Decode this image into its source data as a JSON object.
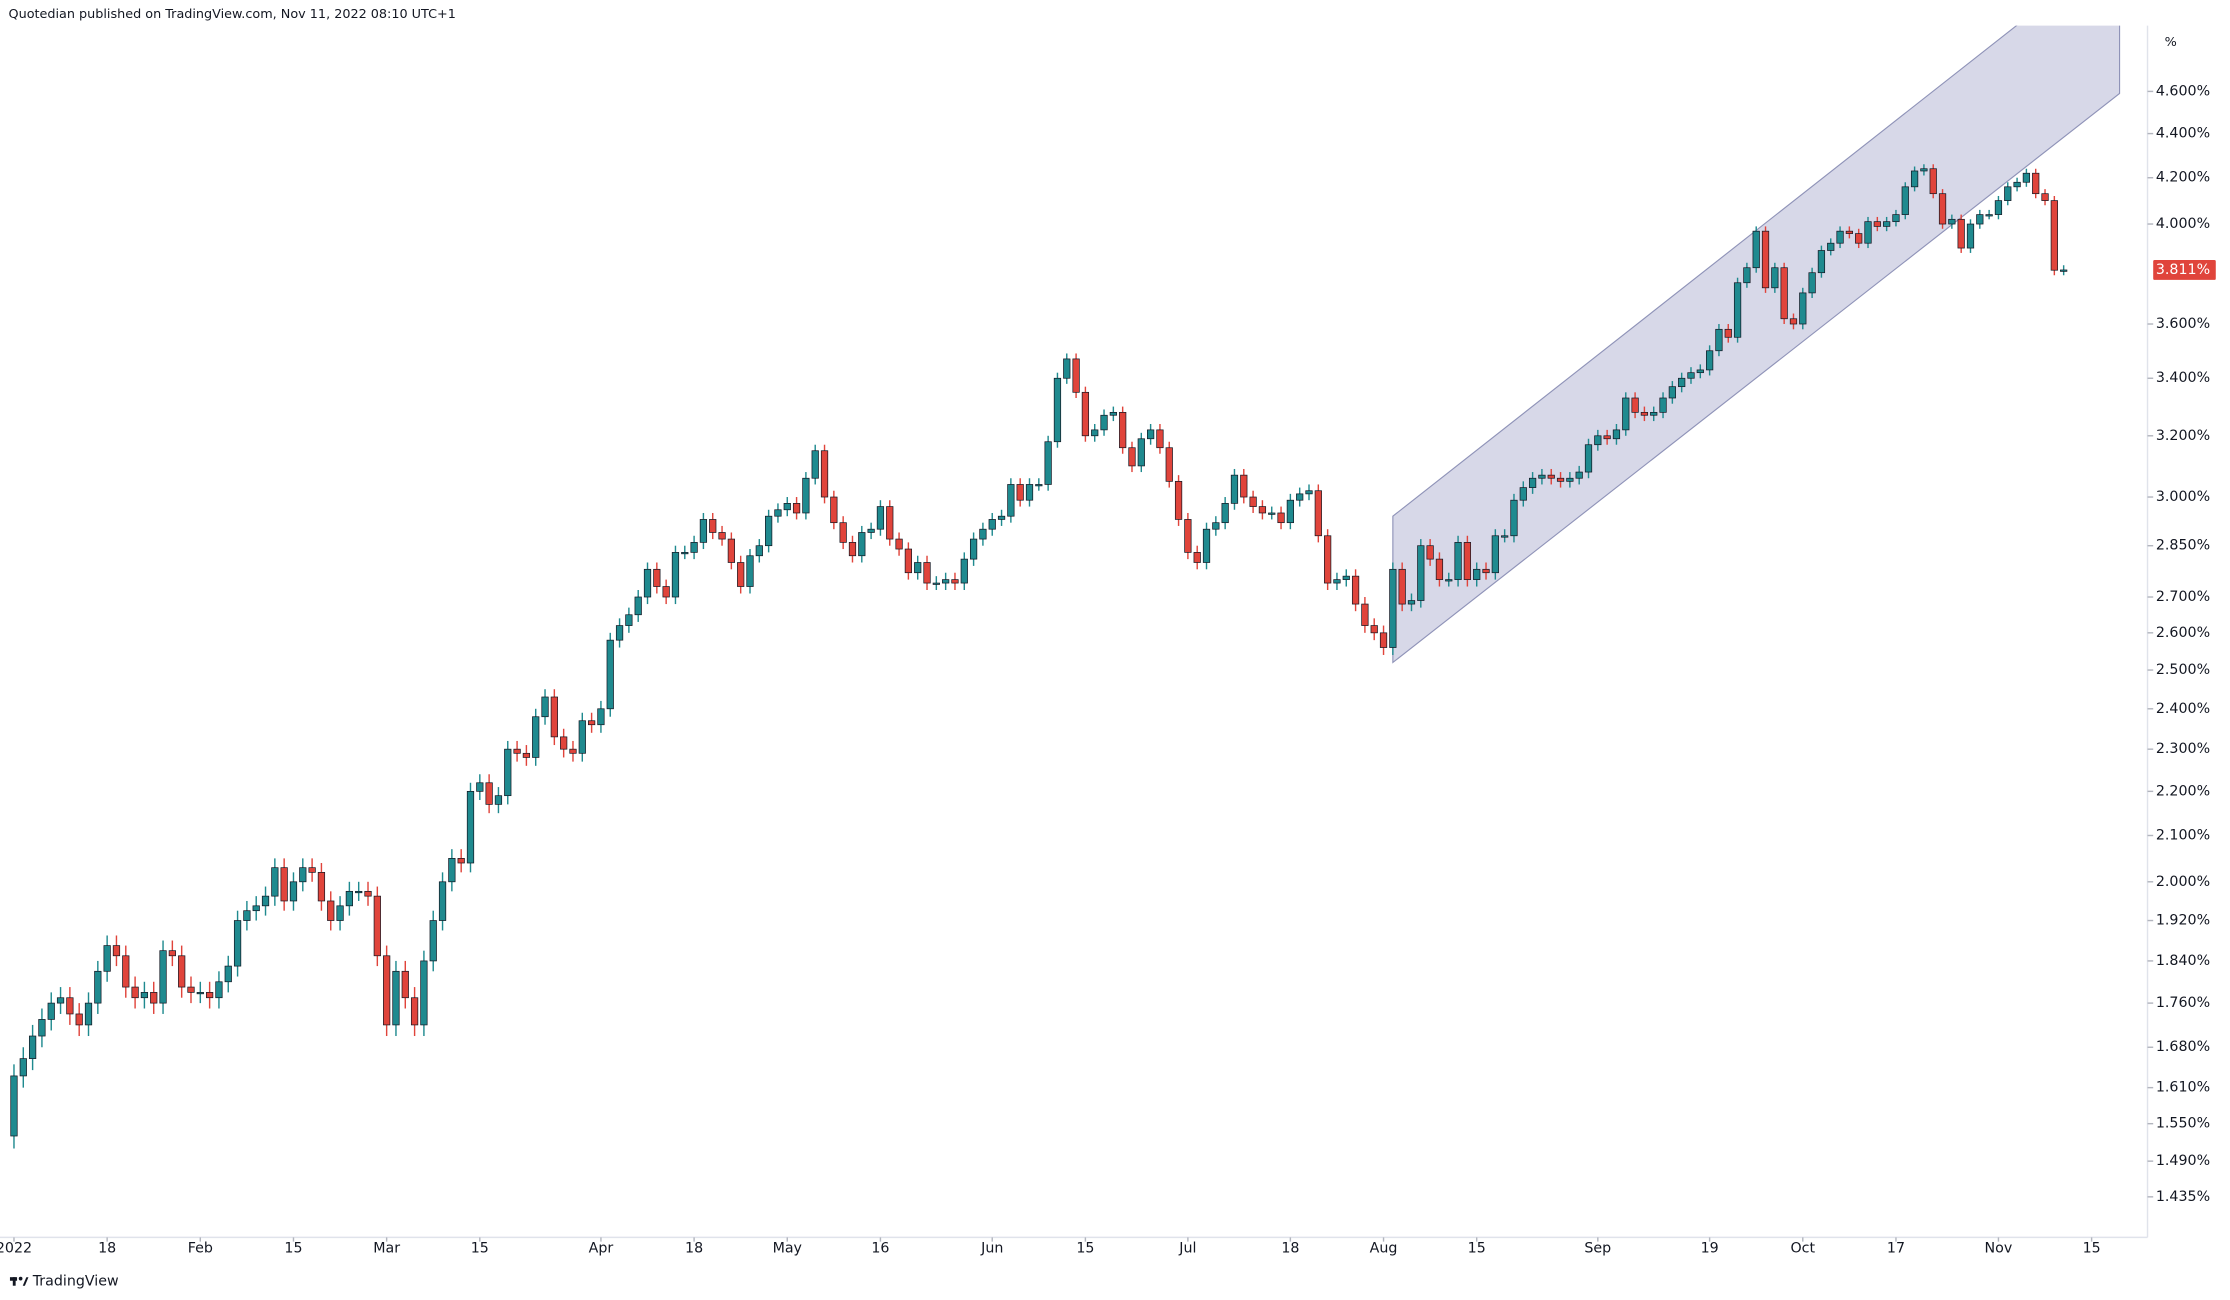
{
  "chart_data": {
    "type": "candlestick",
    "title": "Quotedian published on TradingView.com, Nov 11, 2022 08:10 UTC+1",
    "source": "TradingView",
    "y_unit": "%",
    "log_scale": true,
    "grid": false,
    "up_color": "#1f8a8f",
    "down_color": "#e0443b",
    "xlim": [
      -1.5,
      229
    ],
    "ylim": [
      1.375,
      4.93
    ],
    "xticks": [
      {
        "value": 0,
        "label": "2022"
      },
      {
        "value": 10,
        "label": "18"
      },
      {
        "value": 20,
        "label": "Feb"
      },
      {
        "value": 30,
        "label": "15"
      },
      {
        "value": 40,
        "label": "Mar"
      },
      {
        "value": 50,
        "label": "15"
      },
      {
        "value": 63,
        "label": "Apr"
      },
      {
        "value": 73,
        "label": "18"
      },
      {
        "value": 83,
        "label": "May"
      },
      {
        "value": 93,
        "label": "16"
      },
      {
        "value": 105,
        "label": "Jun"
      },
      {
        "value": 115,
        "label": "15"
      },
      {
        "value": 126,
        "label": "Jul"
      },
      {
        "value": 137,
        "label": "18"
      },
      {
        "value": 147,
        "label": "Aug"
      },
      {
        "value": 157,
        "label": "15"
      },
      {
        "value": 170,
        "label": "Sep"
      },
      {
        "value": 182,
        "label": "19"
      },
      {
        "value": 192,
        "label": "Oct"
      },
      {
        "value": 202,
        "label": "17"
      },
      {
        "value": 213,
        "label": "Nov"
      },
      {
        "value": 223,
        "label": "15"
      }
    ],
    "yticks": [
      {
        "value": 1.435,
        "label": "1.435%"
      },
      {
        "value": 1.49,
        "label": "1.490%"
      },
      {
        "value": 1.55,
        "label": "1.550%"
      },
      {
        "value": 1.61,
        "label": "1.610%"
      },
      {
        "value": 1.68,
        "label": "1.680%"
      },
      {
        "value": 1.76,
        "label": "1.760%"
      },
      {
        "value": 1.84,
        "label": "1.840%"
      },
      {
        "value": 1.92,
        "label": "1.920%"
      },
      {
        "value": 2.0,
        "label": "2.000%"
      },
      {
        "value": 2.1,
        "label": "2.100%"
      },
      {
        "value": 2.2,
        "label": "2.200%"
      },
      {
        "value": 2.3,
        "label": "2.300%"
      },
      {
        "value": 2.4,
        "label": "2.400%"
      },
      {
        "value": 2.5,
        "label": "2.500%"
      },
      {
        "value": 2.6,
        "label": "2.600%"
      },
      {
        "value": 2.7,
        "label": "2.700%"
      },
      {
        "value": 2.85,
        "label": "2.850%"
      },
      {
        "value": 3.0,
        "label": "3.000%"
      },
      {
        "value": 3.2,
        "label": "3.200%"
      },
      {
        "value": 3.4,
        "label": "3.400%"
      },
      {
        "value": 3.6,
        "label": "3.600%"
      },
      {
        "value": 4.0,
        "label": "4.000%"
      },
      {
        "value": 4.2,
        "label": "4.200%"
      },
      {
        "value": 4.4,
        "label": "4.400%"
      },
      {
        "value": 4.6,
        "label": "4.600%"
      }
    ],
    "last_label": {
      "value": 3.811,
      "label": "3.811%"
    },
    "channel": {
      "x": [
        148,
        226
      ],
      "lower": [
        2.52,
        4.59
      ],
      "upper": [
        2.94,
        5.37
      ],
      "color": "#c9cbe0"
    },
    "open": [
      1.53,
      1.63,
      1.66,
      1.7,
      1.73,
      1.76,
      1.77,
      1.74,
      1.72,
      1.76,
      1.82,
      1.87,
      1.85,
      1.79,
      1.77,
      1.78,
      1.76,
      1.86,
      1.85,
      1.79,
      1.78,
      1.78,
      1.77,
      1.8,
      1.83,
      1.92,
      1.94,
      1.95,
      1.97,
      2.03,
      1.96,
      2.0,
      2.03,
      2.02,
      1.96,
      1.92,
      1.95,
      1.98,
      1.98,
      1.97,
      1.85,
      1.72,
      1.82,
      1.77,
      1.72,
      1.84,
      1.92,
      2.0,
      2.05,
      2.04,
      2.2,
      2.22,
      2.17,
      2.19,
      2.3,
      2.29,
      2.28,
      2.38,
      2.43,
      2.33,
      2.3,
      2.29,
      2.37,
      2.36,
      2.4,
      2.58,
      2.62,
      2.65,
      2.7,
      2.78,
      2.73,
      2.7,
      2.83,
      2.83,
      2.86,
      2.93,
      2.89,
      2.87,
      2.8,
      2.73,
      2.82,
      2.85,
      2.94,
      2.96,
      2.98,
      2.95,
      3.06,
      3.15,
      3.0,
      2.92,
      2.86,
      2.82,
      2.89,
      2.9,
      2.97,
      2.87,
      2.84,
      2.77,
      2.8,
      2.74,
      2.74,
      2.75,
      2.74,
      2.81,
      2.87,
      2.9,
      2.93,
      2.94,
      3.04,
      2.99,
      3.04,
      3.04,
      3.18,
      3.4,
      3.47,
      3.35,
      3.2,
      3.22,
      3.27,
      3.28,
      3.16,
      3.1,
      3.19,
      3.22,
      3.16,
      3.05,
      2.93,
      2.83,
      2.8,
      2.9,
      2.92,
      2.98,
      3.07,
      3.0,
      2.97,
      2.95,
      2.95,
      2.92,
      2.99,
      3.01,
      3.02,
      2.88,
      2.74,
      2.75,
      2.76,
      2.68,
      2.62,
      2.6,
      2.56,
      2.78,
      2.68,
      2.69,
      2.85,
      2.81,
      2.75,
      2.75,
      2.86,
      2.75,
      2.78,
      2.77,
      2.88,
      2.88,
      2.99,
      3.03,
      3.06,
      3.07,
      3.06,
      3.05,
      3.06,
      3.08,
      3.17,
      3.2,
      3.19,
      3.22,
      3.33,
      3.28,
      3.27,
      3.28,
      3.33,
      3.37,
      3.4,
      3.42,
      3.43,
      3.5,
      3.58,
      3.55,
      3.76,
      3.82,
      3.97,
      3.74,
      3.82,
      3.62,
      3.6,
      3.72,
      3.8,
      3.89,
      3.92,
      3.97,
      3.96,
      3.92,
      4.01,
      3.99,
      4.01,
      4.04,
      4.16,
      4.23,
      4.24,
      4.13,
      4.0,
      4.02,
      3.9,
      4.0,
      4.04,
      4.04,
      4.1,
      4.16,
      4.18,
      4.22,
      4.13,
      4.1,
      3.81
    ],
    "high": [
      1.65,
      1.68,
      1.72,
      1.75,
      1.78,
      1.79,
      1.79,
      1.76,
      1.78,
      1.84,
      1.89,
      1.89,
      1.87,
      1.81,
      1.8,
      1.8,
      1.88,
      1.88,
      1.87,
      1.81,
      1.8,
      1.8,
      1.82,
      1.85,
      1.94,
      1.96,
      1.97,
      1.99,
      2.05,
      2.05,
      2.02,
      2.05,
      2.05,
      2.04,
      1.98,
      1.97,
      2.0,
      2.0,
      2.0,
      1.99,
      1.87,
      1.84,
      1.84,
      1.79,
      1.86,
      1.94,
      2.02,
      2.07,
      2.07,
      2.22,
      2.24,
      2.24,
      2.21,
      2.32,
      2.32,
      2.31,
      2.4,
      2.45,
      2.45,
      2.35,
      2.32,
      2.39,
      2.39,
      2.42,
      2.6,
      2.64,
      2.67,
      2.72,
      2.8,
      2.8,
      2.75,
      2.85,
      2.85,
      2.88,
      2.95,
      2.95,
      2.91,
      2.89,
      2.82,
      2.84,
      2.87,
      2.96,
      2.98,
      3.0,
      3.0,
      3.08,
      3.17,
      3.17,
      3.02,
      2.94,
      2.88,
      2.91,
      2.92,
      2.99,
      2.99,
      2.89,
      2.86,
      2.82,
      2.82,
      2.76,
      2.77,
      2.77,
      2.83,
      2.89,
      2.92,
      2.95,
      2.96,
      3.06,
      3.06,
      3.06,
      3.06,
      3.2,
      3.42,
      3.49,
      3.49,
      3.37,
      3.24,
      3.29,
      3.3,
      3.3,
      3.18,
      3.21,
      3.24,
      3.24,
      3.18,
      3.07,
      2.95,
      2.85,
      2.92,
      2.94,
      3.0,
      3.09,
      3.09,
      3.02,
      2.99,
      2.97,
      2.97,
      3.01,
      3.03,
      3.04,
      3.04,
      2.9,
      2.77,
      2.78,
      2.78,
      2.7,
      2.64,
      2.62,
      2.8,
      2.8,
      2.71,
      2.87,
      2.87,
      2.83,
      2.77,
      2.88,
      2.88,
      2.8,
      2.8,
      2.9,
      2.9,
      3.01,
      3.05,
      3.08,
      3.09,
      3.09,
      3.08,
      3.08,
      3.1,
      3.19,
      3.22,
      3.22,
      3.24,
      3.35,
      3.35,
      3.3,
      3.3,
      3.35,
      3.39,
      3.42,
      3.44,
      3.45,
      3.52,
      3.6,
      3.6,
      3.78,
      3.84,
      3.99,
      3.99,
      3.84,
      3.84,
      3.64,
      3.74,
      3.82,
      3.91,
      3.94,
      3.99,
      3.99,
      3.98,
      4.03,
      4.03,
      4.03,
      4.06,
      4.18,
      4.25,
      4.26,
      4.26,
      4.15,
      4.04,
      4.04,
      4.02,
      4.06,
      4.06,
      4.12,
      4.18,
      4.2,
      4.24,
      4.24,
      4.15,
      4.12,
      3.83
    ],
    "low": [
      1.51,
      1.61,
      1.64,
      1.68,
      1.71,
      1.74,
      1.72,
      1.7,
      1.7,
      1.74,
      1.8,
      1.83,
      1.77,
      1.75,
      1.75,
      1.74,
      1.74,
      1.83,
      1.77,
      1.76,
      1.76,
      1.75,
      1.75,
      1.78,
      1.81,
      1.9,
      1.92,
      1.93,
      1.95,
      1.94,
      1.94,
      1.98,
      2.0,
      1.94,
      1.9,
      1.9,
      1.93,
      1.96,
      1.95,
      1.83,
      1.7,
      1.7,
      1.75,
      1.7,
      1.7,
      1.82,
      1.9,
      1.98,
      2.02,
      2.02,
      2.18,
      2.15,
      2.15,
      2.17,
      2.27,
      2.26,
      2.26,
      2.36,
      2.31,
      2.28,
      2.27,
      2.27,
      2.34,
      2.34,
      2.38,
      2.56,
      2.6,
      2.63,
      2.68,
      2.71,
      2.68,
      2.68,
      2.81,
      2.81,
      2.84,
      2.87,
      2.85,
      2.78,
      2.71,
      2.71,
      2.8,
      2.83,
      2.92,
      2.94,
      2.93,
      2.93,
      3.04,
      2.98,
      2.9,
      2.84,
      2.8,
      2.8,
      2.87,
      2.88,
      2.85,
      2.82,
      2.75,
      2.75,
      2.72,
      2.72,
      2.72,
      2.72,
      2.72,
      2.79,
      2.85,
      2.88,
      2.91,
      2.92,
      2.97,
      2.97,
      3.02,
      3.02,
      3.16,
      3.38,
      3.33,
      3.18,
      3.18,
      3.2,
      3.25,
      3.14,
      3.08,
      3.08,
      3.17,
      3.14,
      3.03,
      2.91,
      2.81,
      2.78,
      2.78,
      2.88,
      2.9,
      2.96,
      2.98,
      2.95,
      2.93,
      2.93,
      2.9,
      2.9,
      2.97,
      2.99,
      2.86,
      2.72,
      2.72,
      2.73,
      2.66,
      2.6,
      2.58,
      2.54,
      2.54,
      2.66,
      2.66,
      2.67,
      2.79,
      2.73,
      2.73,
      2.73,
      2.73,
      2.73,
      2.75,
      2.75,
      2.86,
      2.86,
      2.97,
      3.01,
      3.04,
      3.04,
      3.03,
      3.03,
      3.04,
      3.06,
      3.15,
      3.17,
      3.17,
      3.2,
      3.26,
      3.25,
      3.25,
      3.26,
      3.31,
      3.35,
      3.38,
      3.4,
      3.41,
      3.48,
      3.53,
      3.53,
      3.74,
      3.8,
      3.72,
      3.72,
      3.6,
      3.58,
      3.58,
      3.7,
      3.78,
      3.87,
      3.9,
      3.94,
      3.9,
      3.9,
      3.97,
      3.97,
      3.99,
      4.02,
      4.14,
      4.21,
      4.11,
      3.98,
      3.98,
      3.88,
      3.88,
      3.98,
      4.02,
      4.02,
      4.08,
      4.14,
      4.16,
      4.11,
      4.08,
      3.79,
      3.79
    ],
    "close": [
      1.63,
      1.66,
      1.7,
      1.73,
      1.76,
      1.77,
      1.74,
      1.72,
      1.76,
      1.82,
      1.87,
      1.85,
      1.79,
      1.77,
      1.78,
      1.76,
      1.86,
      1.85,
      1.79,
      1.78,
      1.78,
      1.77,
      1.8,
      1.83,
      1.92,
      1.94,
      1.95,
      1.97,
      2.03,
      1.96,
      2.0,
      2.03,
      2.02,
      1.96,
      1.92,
      1.95,
      1.98,
      1.98,
      1.97,
      1.85,
      1.72,
      1.82,
      1.77,
      1.72,
      1.84,
      1.92,
      2.0,
      2.05,
      2.04,
      2.2,
      2.22,
      2.17,
      2.19,
      2.3,
      2.29,
      2.28,
      2.38,
      2.43,
      2.33,
      2.3,
      2.29,
      2.37,
      2.36,
      2.4,
      2.58,
      2.62,
      2.65,
      2.7,
      2.78,
      2.73,
      2.7,
      2.83,
      2.83,
      2.86,
      2.93,
      2.89,
      2.87,
      2.8,
      2.73,
      2.82,
      2.85,
      2.94,
      2.96,
      2.98,
      2.95,
      3.06,
      3.15,
      3.0,
      2.92,
      2.86,
      2.82,
      2.89,
      2.9,
      2.97,
      2.87,
      2.84,
      2.77,
      2.8,
      2.74,
      2.74,
      2.75,
      2.74,
      2.81,
      2.87,
      2.9,
      2.93,
      2.94,
      3.04,
      2.99,
      3.04,
      3.04,
      3.18,
      3.4,
      3.47,
      3.35,
      3.2,
      3.22,
      3.27,
      3.28,
      3.16,
      3.1,
      3.19,
      3.22,
      3.16,
      3.05,
      2.93,
      2.83,
      2.8,
      2.9,
      2.92,
      2.98,
      3.07,
      3.0,
      2.97,
      2.95,
      2.95,
      2.92,
      2.99,
      3.01,
      3.02,
      2.88,
      2.74,
      2.75,
      2.76,
      2.68,
      2.62,
      2.6,
      2.56,
      2.78,
      2.68,
      2.69,
      2.85,
      2.81,
      2.75,
      2.75,
      2.86,
      2.75,
      2.78,
      2.77,
      2.88,
      2.88,
      2.99,
      3.03,
      3.06,
      3.07,
      3.06,
      3.05,
      3.06,
      3.08,
      3.17,
      3.2,
      3.19,
      3.22,
      3.33,
      3.28,
      3.27,
      3.28,
      3.33,
      3.37,
      3.4,
      3.42,
      3.43,
      3.5,
      3.58,
      3.55,
      3.76,
      3.82,
      3.97,
      3.74,
      3.82,
      3.62,
      3.6,
      3.72,
      3.8,
      3.89,
      3.92,
      3.97,
      3.96,
      3.92,
      4.01,
      3.99,
      4.01,
      4.04,
      4.16,
      4.23,
      4.24,
      4.13,
      4.0,
      4.02,
      3.9,
      4.0,
      4.04,
      4.04,
      4.1,
      4.16,
      4.18,
      4.22,
      4.13,
      4.1,
      3.81,
      3.811
    ]
  }
}
